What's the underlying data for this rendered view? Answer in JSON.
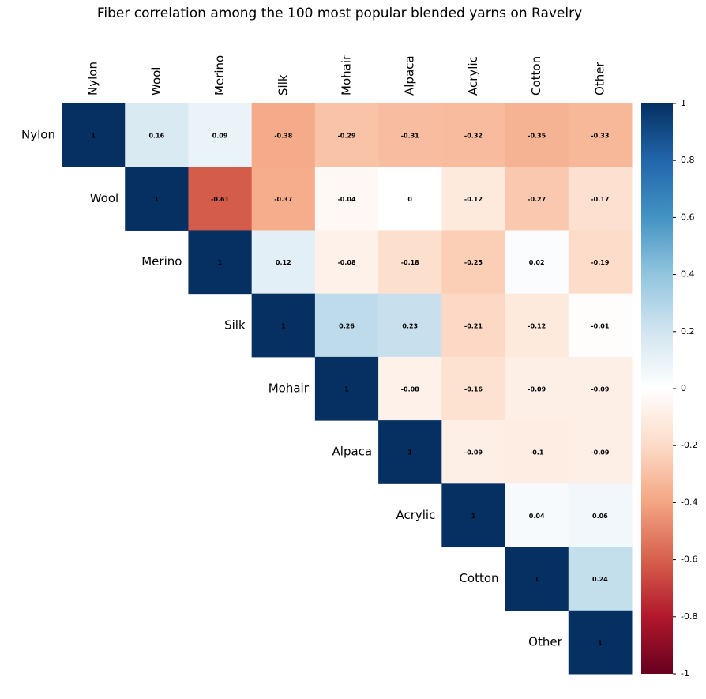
{
  "chart_data": {
    "type": "heatmap",
    "title": "Fiber correlation among the 100 most popular blended yarns on Ravelry",
    "categories": [
      "Nylon",
      "Wool",
      "Merino",
      "Silk",
      "Mohair",
      "Alpaca",
      "Acrylic",
      "Cotton",
      "Other"
    ],
    "values": [
      [
        1,
        0.16,
        0.09,
        -0.38,
        -0.29,
        -0.31,
        -0.32,
        -0.35,
        -0.33
      ],
      [
        null,
        1,
        -0.61,
        -0.37,
        -0.04,
        0,
        -0.12,
        -0.27,
        -0.17
      ],
      [
        null,
        null,
        1,
        0.12,
        -0.08,
        -0.18,
        -0.25,
        0.02,
        -0.19
      ],
      [
        null,
        null,
        null,
        1,
        0.26,
        0.23,
        -0.21,
        -0.12,
        -0.01
      ],
      [
        null,
        null,
        null,
        null,
        1,
        -0.08,
        -0.16,
        -0.09,
        -0.09
      ],
      [
        null,
        null,
        null,
        null,
        null,
        1,
        -0.09,
        -0.1,
        -0.09
      ],
      [
        null,
        null,
        null,
        null,
        null,
        null,
        1,
        0.04,
        0.06
      ],
      [
        null,
        null,
        null,
        null,
        null,
        null,
        null,
        1,
        0.24
      ],
      [
        null,
        null,
        null,
        null,
        null,
        null,
        null,
        null,
        1
      ]
    ],
    "clim": [
      -1,
      1
    ],
    "cticks": [
      -1,
      -0.8,
      -0.6,
      -0.4,
      -0.2,
      0,
      0.2,
      0.4,
      0.6,
      0.8,
      1
    ],
    "colors": [
      "#67001F",
      "#B2182B",
      "#D6604D",
      "#F4A582",
      "#FDDBC7",
      "#FFFFFF",
      "#D1E5F0",
      "#92C5DE",
      "#4393C3",
      "#2166AC",
      "#053061"
    ]
  }
}
